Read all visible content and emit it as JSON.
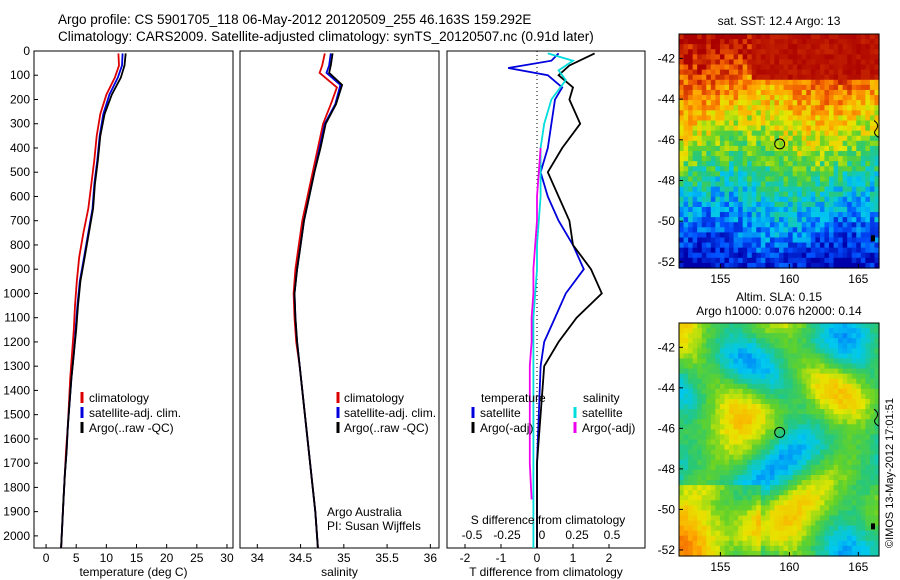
{
  "header": {
    "line1": "Argo profile: CS 5901705_118 06-May-2012 20120509_255 46.163S 159.292E",
    "line2": "Climatology: CARS2009. Satellite-adjusted climatology: synTS_20120507.nc (0.91d later)"
  },
  "colors": {
    "climatology": "#dd0000",
    "satellite": "#0000dd",
    "argo": "#000000",
    "satellite_sal": "#00dddd",
    "argo_sal": "#ee00ee"
  },
  "chart_data": [
    {
      "type": "line",
      "id": "temperature",
      "xlabel": "temperature (deg C)",
      "xlim": [
        -2,
        31
      ],
      "xticks": [
        "0",
        "5",
        "10",
        "15",
        "20",
        "25",
        "30"
      ],
      "ylim": [
        0,
        2050
      ],
      "yticks": [
        "0",
        "100",
        "200",
        "300",
        "400",
        "500",
        "600",
        "700",
        "800",
        "900",
        "1000",
        "1100",
        "1200",
        "1300",
        "1400",
        "1500",
        "1600",
        "1700",
        "1800",
        "1900",
        "2000"
      ],
      "legend": [
        "climatology",
        "satellite-adj. clim.",
        "Argo(..raw -QC)"
      ],
      "series": [
        {
          "name": "climatology",
          "color": "#dd0000",
          "points": [
            [
              12,
              10
            ],
            [
              12.1,
              60
            ],
            [
              11.4,
              110
            ],
            [
              10,
              180
            ],
            [
              9,
              260
            ],
            [
              8.4,
              350
            ],
            [
              8,
              450
            ],
            [
              7.5,
              550
            ],
            [
              7,
              650
            ],
            [
              6.2,
              750
            ],
            [
              5.5,
              850
            ],
            [
              5.1,
              950
            ],
            [
              4.8,
              1050
            ],
            [
              4.6,
              1150
            ],
            [
              4.3,
              1250
            ],
            [
              4.0,
              1350
            ],
            [
              3.8,
              1450
            ],
            [
              3.6,
              1550
            ],
            [
              3.3,
              1650
            ],
            [
              3.1,
              1750
            ],
            [
              2.9,
              1850
            ],
            [
              2.7,
              1950
            ],
            [
              2.5,
              2050
            ]
          ]
        },
        {
          "name": "satellite-adj. clim.",
          "color": "#0000dd",
          "points": [
            [
              12.7,
              10
            ],
            [
              12.6,
              60
            ],
            [
              11.9,
              110
            ],
            [
              10.5,
              180
            ],
            [
              9.5,
              260
            ],
            [
              8.9,
              350
            ],
            [
              8.5,
              450
            ],
            [
              8,
              550
            ],
            [
              7.7,
              650
            ],
            [
              7,
              750
            ],
            [
              6.3,
              850
            ],
            [
              5.6,
              950
            ],
            [
              5.2,
              1050
            ],
            [
              4.9,
              1150
            ],
            [
              4.6,
              1250
            ],
            [
              4.2,
              1350
            ],
            [
              3.9,
              1450
            ],
            [
              3.6,
              1550
            ],
            [
              3.4,
              1650
            ],
            [
              3.1,
              1750
            ],
            [
              2.9,
              1850
            ],
            [
              2.7,
              1950
            ],
            [
              2.5,
              2050
            ]
          ]
        },
        {
          "name": "Argo(..raw -QC)",
          "color": "#000000",
          "points": [
            [
              13.2,
              10
            ],
            [
              13,
              60
            ],
            [
              12.4,
              110
            ],
            [
              10.9,
              180
            ],
            [
              9.7,
              260
            ],
            [
              9,
              350
            ],
            [
              8.6,
              450
            ],
            [
              8.1,
              550
            ],
            [
              7.8,
              650
            ],
            [
              7.1,
              750
            ],
            [
              6.4,
              850
            ],
            [
              5.7,
              950
            ],
            [
              5.3,
              1050
            ],
            [
              5,
              1150
            ],
            [
              4.6,
              1250
            ],
            [
              4.2,
              1350
            ],
            [
              3.9,
              1450
            ],
            [
              3.6,
              1550
            ],
            [
              3.4,
              1650
            ],
            [
              3.1,
              1750
            ],
            [
              2.9,
              1850
            ],
            [
              2.7,
              1950
            ],
            [
              2.5,
              2050
            ]
          ]
        }
      ]
    },
    {
      "type": "line",
      "id": "salinity",
      "xlabel": "salinity",
      "xlim": [
        33.8,
        36.1
      ],
      "xticks": [
        "34",
        "34.5",
        "35",
        "35.5",
        "36"
      ],
      "ylim": [
        0,
        2050
      ],
      "legend": [
        "climatology",
        "satellite-adj. clim.",
        "Argo(..raw -QC)"
      ],
      "annotation": [
        "Argo Australia",
        "PI: Susan Wijffels"
      ],
      "series": [
        {
          "name": "climatology",
          "color": "#dd0000",
          "points": [
            [
              34.78,
              10
            ],
            [
              34.75,
              60
            ],
            [
              34.72,
              90
            ],
            [
              34.92,
              150
            ],
            [
              34.85,
              220
            ],
            [
              34.76,
              300
            ],
            [
              34.7,
              400
            ],
            [
              34.64,
              500
            ],
            [
              34.58,
              600
            ],
            [
              34.52,
              700
            ],
            [
              34.48,
              800
            ],
            [
              34.44,
              900
            ],
            [
              34.42,
              1000
            ],
            [
              34.43,
              1100
            ],
            [
              34.45,
              1200
            ],
            [
              34.49,
              1300
            ],
            [
              34.52,
              1400
            ],
            [
              34.55,
              1500
            ],
            [
              34.58,
              1600
            ],
            [
              34.61,
              1700
            ],
            [
              34.64,
              1800
            ],
            [
              34.67,
              1900
            ],
            [
              34.7,
              2050
            ]
          ]
        },
        {
          "name": "satellite-adj. clim.",
          "color": "#0000dd",
          "points": [
            [
              34.85,
              10
            ],
            [
              34.83,
              60
            ],
            [
              34.8,
              90
            ],
            [
              34.96,
              140
            ],
            [
              34.9,
              220
            ],
            [
              34.78,
              300
            ],
            [
              34.72,
              400
            ],
            [
              34.66,
              500
            ],
            [
              34.6,
              600
            ],
            [
              34.54,
              700
            ],
            [
              34.5,
              800
            ],
            [
              34.46,
              900
            ],
            [
              34.43,
              1000
            ],
            [
              34.44,
              1100
            ],
            [
              34.46,
              1200
            ],
            [
              34.49,
              1300
            ],
            [
              34.52,
              1400
            ],
            [
              34.55,
              1500
            ],
            [
              34.58,
              1600
            ],
            [
              34.61,
              1700
            ],
            [
              34.64,
              1800
            ],
            [
              34.67,
              1900
            ],
            [
              34.7,
              2050
            ]
          ]
        },
        {
          "name": "Argo(..raw -QC)",
          "color": "#000000",
          "points": [
            [
              34.87,
              10
            ],
            [
              34.85,
              60
            ],
            [
              34.83,
              90
            ],
            [
              34.98,
              140
            ],
            [
              34.91,
              220
            ],
            [
              34.79,
              300
            ],
            [
              34.73,
              400
            ],
            [
              34.66,
              500
            ],
            [
              34.6,
              600
            ],
            [
              34.54,
              700
            ],
            [
              34.5,
              800
            ],
            [
              34.46,
              900
            ],
            [
              34.43,
              1000
            ],
            [
              34.44,
              1100
            ],
            [
              34.46,
              1200
            ],
            [
              34.49,
              1300
            ],
            [
              34.52,
              1400
            ],
            [
              34.55,
              1500
            ],
            [
              34.58,
              1600
            ],
            [
              34.61,
              1700
            ],
            [
              34.64,
              1800
            ],
            [
              34.67,
              1900
            ],
            [
              34.7,
              2050
            ]
          ]
        }
      ]
    },
    {
      "type": "line",
      "id": "differences",
      "xlabel": "T difference from climatology",
      "xlabel2": "S difference from climatology",
      "xlim": [
        -2.5,
        3
      ],
      "xticks": [
        "-2",
        "-1",
        "0",
        "1",
        "2"
      ],
      "xticks2": [
        "-0.5",
        "-0.25",
        "0",
        "0.25",
        "0.5"
      ],
      "ylim": [
        0,
        2050
      ],
      "legend_left": [
        "temperature",
        "satellite",
        "Argo(-adj)"
      ],
      "legend_right": [
        "salinity",
        "satellite",
        "Argo(-adj)"
      ],
      "series": [
        {
          "name": "satellite",
          "color": "#0000dd",
          "points": [
            [
              0.6,
              10
            ],
            [
              0.4,
              40
            ],
            [
              -0.8,
              70
            ],
            [
              0.3,
              100
            ],
            [
              0.7,
              150
            ],
            [
              0.5,
              200
            ],
            [
              0.4,
              300
            ],
            [
              0.3,
              400
            ],
            [
              0.1,
              500
            ],
            [
              0.3,
              600
            ],
            [
              0.6,
              700
            ],
            [
              1.0,
              800
            ],
            [
              1.3,
              900
            ],
            [
              0.8,
              1000
            ],
            [
              0.5,
              1100
            ],
            [
              0.2,
              1200
            ],
            [
              0.1,
              1300
            ],
            [
              0.05,
              1500
            ],
            [
              0.0,
              1700
            ],
            [
              0.0,
              2050
            ]
          ]
        },
        {
          "name": "Argo(-adj)",
          "color": "#000000",
          "points": [
            [
              1.6,
              10
            ],
            [
              0.9,
              60
            ],
            [
              0.6,
              100
            ],
            [
              1.0,
              150
            ],
            [
              0.9,
              200
            ],
            [
              1.2,
              300
            ],
            [
              0.7,
              400
            ],
            [
              0.3,
              500
            ],
            [
              0.6,
              600
            ],
            [
              0.9,
              700
            ],
            [
              1.0,
              800
            ],
            [
              1.5,
              900
            ],
            [
              1.8,
              1000
            ],
            [
              1.1,
              1100
            ],
            [
              0.6,
              1200
            ],
            [
              0.2,
              1300
            ],
            [
              0.1,
              1500
            ],
            [
              0.0,
              1700
            ],
            [
              0.0,
              2050
            ]
          ]
        },
        {
          "name": "satellite",
          "color": "#00dddd",
          "points": [
            [
              0.3,
              10
            ],
            [
              1.0,
              40
            ],
            [
              0.6,
              80
            ],
            [
              0.8,
              120
            ],
            [
              0.4,
              200
            ],
            [
              0.2,
              300
            ],
            [
              0.1,
              400
            ],
            [
              0.1,
              500
            ],
            [
              0.1,
              600
            ],
            [
              0.05,
              700
            ],
            [
              0.0,
              800
            ],
            [
              0.0,
              900
            ],
            [
              -0.05,
              1000
            ],
            [
              -0.1,
              1100
            ],
            [
              -0.1,
              1200
            ],
            [
              -0.1,
              1300
            ],
            [
              -0.1,
              1500
            ],
            [
              -0.1,
              1700
            ],
            [
              -0.1,
              2050
            ]
          ]
        },
        {
          "name": "Argo(-adj)",
          "color": "#ee00ee",
          "points": [
            [
              0.1,
              400
            ],
            [
              0.05,
              500
            ],
            [
              0.0,
              600
            ],
            [
              0.0,
              700
            ],
            [
              -0.05,
              800
            ],
            [
              -0.1,
              900
            ],
            [
              -0.1,
              1000
            ],
            [
              -0.15,
              1100
            ],
            [
              -0.15,
              1200
            ],
            [
              -0.2,
              1300
            ],
            [
              -0.2,
              1500
            ],
            [
              -0.2,
              1700
            ],
            [
              -0.15,
              1850
            ]
          ]
        }
      ]
    },
    {
      "type": "heatmap",
      "id": "sst_map",
      "title": "sat. SST: 12.4  Argo: 13",
      "xticks": [
        "155",
        "160",
        "165"
      ],
      "yticks": [
        "-42",
        "-44",
        "-46",
        "-48",
        "-50",
        "-52"
      ],
      "xlim": [
        152,
        166.5
      ],
      "ylim": [
        -52.3,
        -40.8
      ],
      "marker": [
        159.3,
        -46.2
      ]
    },
    {
      "type": "heatmap",
      "id": "sla_map",
      "title": "Altim. SLA: 0.15",
      "subtitle": "Argo h1000: 0.076 h2000: 0.14",
      "xticks": [
        "155",
        "160",
        "165"
      ],
      "yticks": [
        "-42",
        "-44",
        "-46",
        "-48",
        "-50",
        "-52"
      ],
      "xlim": [
        152,
        166.5
      ],
      "ylim": [
        -52.3,
        -40.8
      ],
      "marker": [
        159.3,
        -46.2
      ]
    }
  ],
  "footer": {
    "stamp": "©IMOS 13-May-2012 17:01:51"
  }
}
